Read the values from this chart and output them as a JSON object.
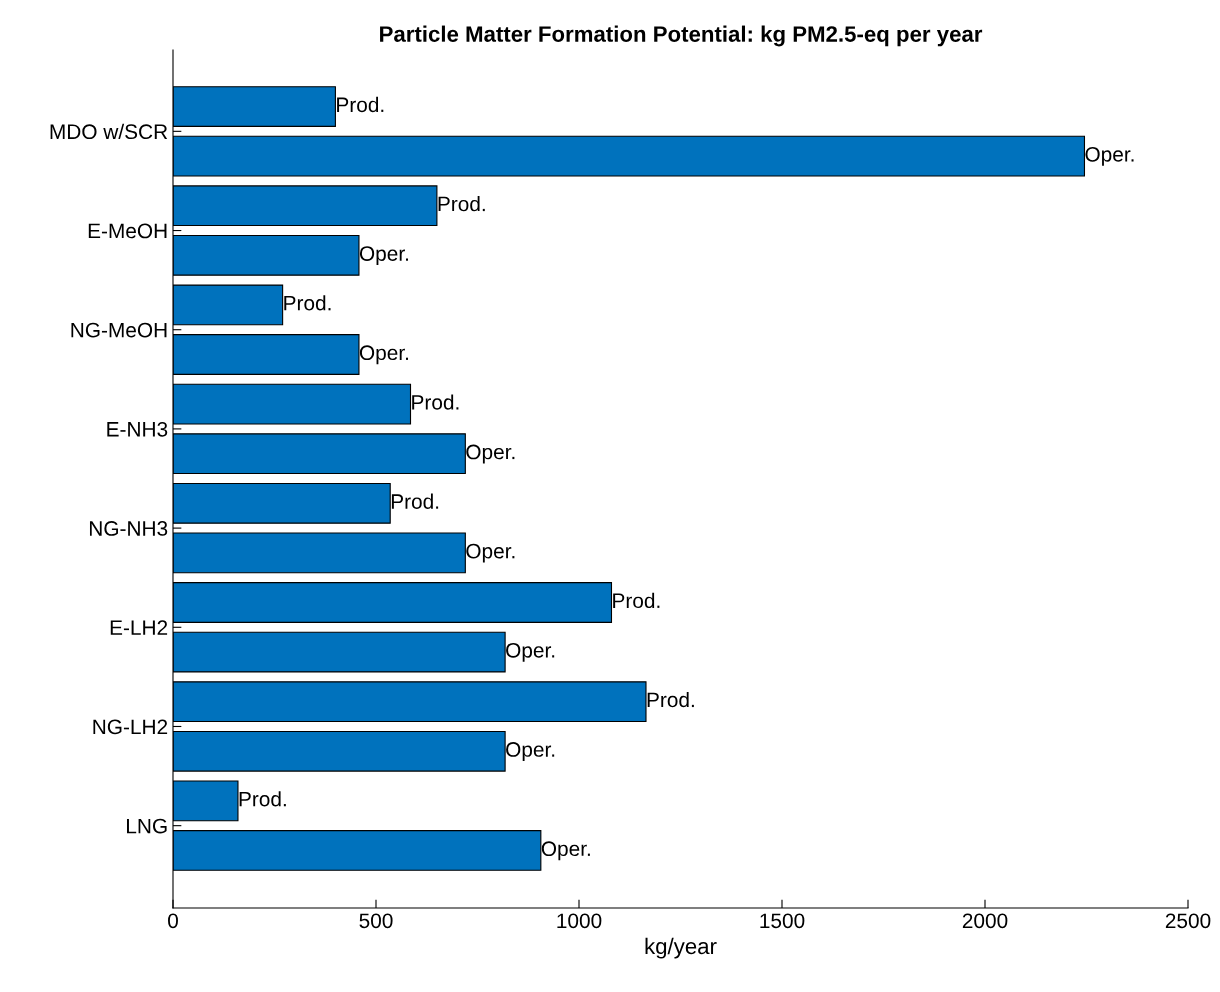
{
  "chart_data": {
    "type": "bar",
    "orientation": "horizontal",
    "title": "Particle Matter Formation Potential: kg PM2.5-eq per year",
    "xlabel": "kg/year",
    "categories": [
      "MDO w/SCR",
      "E-MeOH",
      "NG-MeOH",
      "E-NH3",
      "NG-NH3",
      "E-LH2",
      "NG-LH2",
      "LNG"
    ],
    "series": [
      {
        "name": "Prod.",
        "color": "#0072bd",
        "values": [
          400,
          650,
          270,
          585,
          535,
          1080,
          1165,
          160
        ]
      },
      {
        "name": "Oper.",
        "color": "#0072bd",
        "values": [
          2245,
          458,
          458,
          720,
          720,
          818,
          818,
          906
        ]
      }
    ],
    "xlim": [
      0,
      2500
    ],
    "xticks": [
      0,
      500,
      1000,
      1500,
      2000,
      2500
    ],
    "grid": false
  }
}
